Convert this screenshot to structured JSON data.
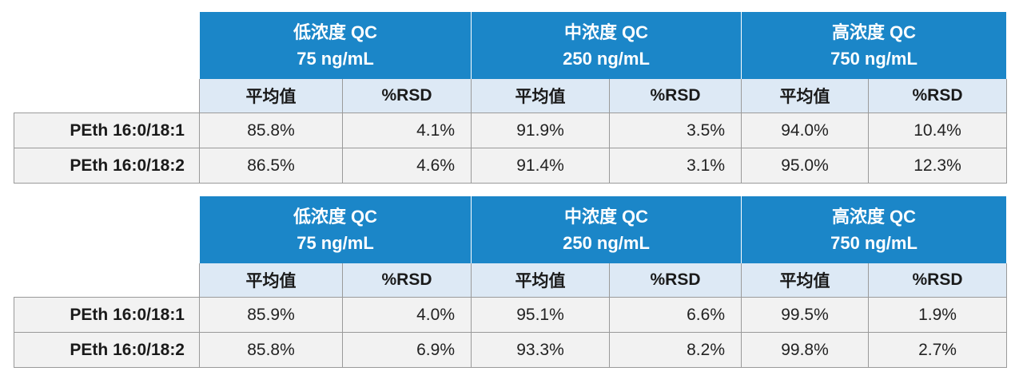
{
  "tables": [
    {
      "groups": [
        {
          "name": "低浓度 QC",
          "conc": "75 ng/mL"
        },
        {
          "name": "中浓度 QC",
          "conc": "250 ng/mL"
        },
        {
          "name": "高浓度 QC",
          "conc": "750 ng/mL"
        }
      ],
      "subheaders": [
        "平均值",
        "%RSD",
        "平均值",
        "%RSD",
        "平均值",
        "%RSD"
      ],
      "rows": [
        {
          "label": "PEth 16:0/18:1",
          "values": [
            "85.8%",
            "4.1%",
            "91.9%",
            "3.5%",
            "94.0%",
            "10.4%"
          ]
        },
        {
          "label": "PEth 16:0/18:2",
          "values": [
            "86.5%",
            "4.6%",
            "91.4%",
            "3.1%",
            "95.0%",
            "12.3%"
          ]
        }
      ]
    },
    {
      "groups": [
        {
          "name": "低浓度 QC",
          "conc": "75 ng/mL"
        },
        {
          "name": "中浓度 QC",
          "conc": "250 ng/mL"
        },
        {
          "name": "高浓度 QC",
          "conc": "750 ng/mL"
        }
      ],
      "subheaders": [
        "平均值",
        "%RSD",
        "平均值",
        "%RSD",
        "平均值",
        "%RSD"
      ],
      "rows": [
        {
          "label": "PEth 16:0/18:1",
          "values": [
            "85.9%",
            "4.0%",
            "95.1%",
            "6.6%",
            "99.5%",
            "1.9%"
          ]
        },
        {
          "label": "PEth 16:0/18:2",
          "values": [
            "85.8%",
            "6.9%",
            "93.3%",
            "8.2%",
            "99.8%",
            "2.7%"
          ]
        }
      ]
    }
  ],
  "colors": {
    "header_blue": "#1b86c8",
    "subheader_bg": "#dde9f5",
    "row_bg": "#f2f2f2",
    "border": "#9a9a9a"
  }
}
